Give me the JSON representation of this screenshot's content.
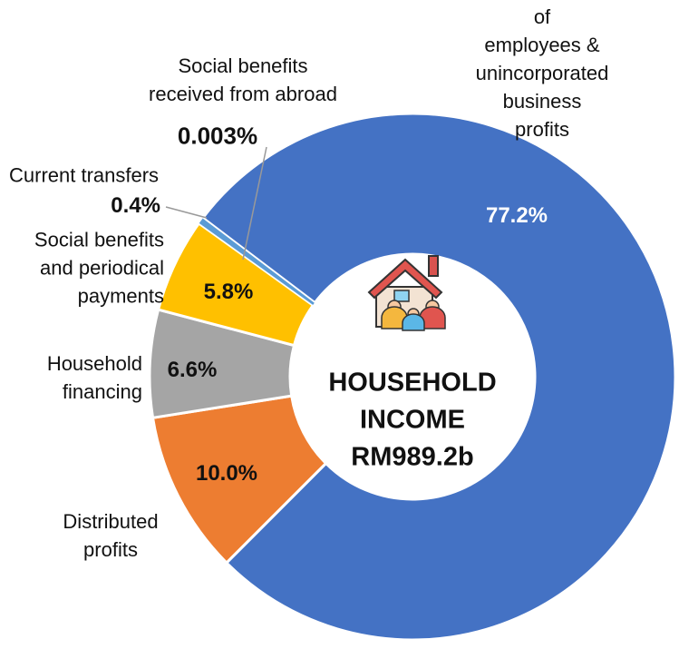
{
  "chart_data": {
    "type": "donut",
    "categories": [
      "Compensation of\nemployees &\nunincorporated\nbusiness profits",
      "Distributed\nprofits",
      "Household\nfinancing",
      "Social benefits\nand periodical\npayments",
      "Current transfers",
      "Social benefits\nreceived from abroad"
    ],
    "values": [
      77.2,
      10.0,
      6.6,
      5.8,
      0.4,
      0.003
    ],
    "value_labels": [
      "77.2%",
      "10.0%",
      "6.6%",
      "5.8%",
      "0.4%",
      "0.003%"
    ],
    "colors": [
      "#4472c4",
      "#ed7d31",
      "#a5a5a5",
      "#ffc000",
      "#5b9bd5",
      "#70ad47"
    ],
    "center_label": "HOUSEHOLD\nINCOME\nRM989.2b"
  }
}
